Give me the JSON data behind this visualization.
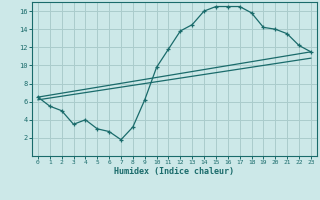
{
  "xlabel": "Humidex (Indice chaleur)",
  "ylabel": "",
  "bg_color": "#cce8e8",
  "grid_color": "#aacccc",
  "line_color": "#1a6b6b",
  "xlim": [
    -0.5,
    23.5
  ],
  "ylim": [
    0,
    17
  ],
  "xticks": [
    0,
    1,
    2,
    3,
    4,
    5,
    6,
    7,
    8,
    9,
    10,
    11,
    12,
    13,
    14,
    15,
    16,
    17,
    18,
    19,
    20,
    21,
    22,
    23
  ],
  "yticks": [
    2,
    4,
    6,
    8,
    10,
    12,
    14,
    16
  ],
  "curve1_x": [
    0,
    1,
    2,
    3,
    4,
    5,
    6,
    7,
    8,
    9,
    10,
    11,
    12,
    13,
    14,
    15,
    16,
    17,
    18,
    19,
    20,
    21,
    22,
    23
  ],
  "curve1_y": [
    6.5,
    5.5,
    5.0,
    3.5,
    4.0,
    3.0,
    2.7,
    1.8,
    3.2,
    6.2,
    9.8,
    11.8,
    13.8,
    14.5,
    16.0,
    16.5,
    16.5,
    16.5,
    15.8,
    14.2,
    14.0,
    13.5,
    12.2,
    11.5
  ],
  "line1_x": [
    0,
    23
  ],
  "line1_y": [
    6.5,
    11.5
  ],
  "line2_x": [
    0,
    23
  ],
  "line2_y": [
    6.2,
    10.8
  ]
}
